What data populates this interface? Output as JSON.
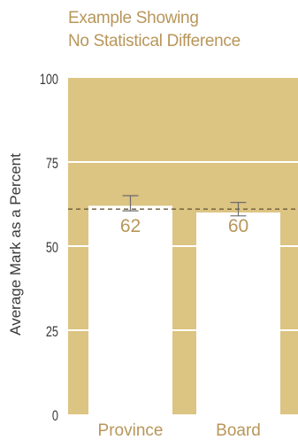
{
  "title_lines": [
    "Example Showing",
    "No Statistical Difference"
  ],
  "chart_data": {
    "type": "bar",
    "title": "Example Showing No Statistical Difference",
    "categories": [
      "Province",
      "Board"
    ],
    "values": [
      62,
      60
    ],
    "data_labels": [
      "62",
      "60"
    ],
    "error_bars": [
      {
        "low": 60.5,
        "high": 65.0
      },
      {
        "low": 59.0,
        "high": 63.0
      }
    ],
    "reference_line": 61,
    "ylabel": "Average Mark as a Percent",
    "xlabel": "",
    "ylim": [
      0,
      100
    ],
    "yticks": [
      0,
      25,
      50,
      75,
      100
    ],
    "grid": true,
    "colors": {
      "background": "#dcc482",
      "bar": "#ffffff",
      "text": "#b8965a",
      "axis_text": "#3a3a3a",
      "gridline": "#ffffff",
      "reference_line": "#6b5a3a",
      "error_bar": "#6b6b6b"
    }
  }
}
